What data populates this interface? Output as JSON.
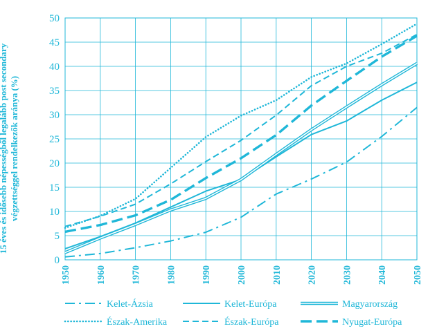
{
  "chart_data": {
    "type": "line",
    "ylabel": "15 éves és idősebb népességből legalább post secondary végzettséggel rendelkezők aránya (%)",
    "xlabel": "",
    "x": [
      1950,
      1960,
      1970,
      1980,
      1990,
      2000,
      2010,
      2020,
      2030,
      2040,
      2050
    ],
    "ylim": [
      0,
      50
    ],
    "yticks": [
      0,
      5,
      10,
      15,
      20,
      25,
      30,
      35,
      40,
      45,
      50
    ],
    "xtick_labels": [
      "1950",
      "1960",
      "1970",
      "1980",
      "1990",
      "2000",
      "2010",
      "2020",
      "2030",
      "2040",
      "2050"
    ],
    "ytick_labels": [
      "0",
      "5",
      "10",
      "15",
      "20",
      "25",
      "30",
      "35",
      "40",
      "45",
      "50"
    ],
    "grid": true,
    "legend_position": "bottom",
    "color": "#1fb7d8",
    "series": [
      {
        "name": "Kelet-Ázsia",
        "style": "dash-dot",
        "values": [
          0.6,
          1.3,
          2.5,
          3.9,
          5.7,
          8.8,
          13.6,
          16.7,
          20.2,
          25.5,
          31.5
        ]
      },
      {
        "name": "Kelet-Európa",
        "style": "solid",
        "values": [
          2.3,
          4.8,
          7.6,
          10.9,
          14.2,
          16.6,
          21.3,
          25.9,
          28.7,
          33.0,
          36.7
        ]
      },
      {
        "name": "Magyarország",
        "style": "double",
        "values": [
          1.5,
          4.5,
          7.3,
          10.3,
          12.7,
          16.6,
          21.8,
          26.9,
          31.6,
          36.2,
          40.6
        ]
      },
      {
        "name": "Észak-Amerika",
        "style": "dotted",
        "values": [
          6.6,
          9.1,
          12.6,
          19.0,
          25.4,
          29.8,
          33.0,
          37.8,
          40.6,
          44.6,
          48.8
        ]
      },
      {
        "name": "Észak-Európa",
        "style": "dashed",
        "values": [
          6.9,
          9.0,
          11.5,
          15.7,
          20.3,
          24.7,
          29.9,
          36.0,
          40.0,
          42.7,
          46.6
        ]
      },
      {
        "name": "Nyugat-Európa",
        "style": "long-dash",
        "values": [
          5.8,
          7.2,
          9.2,
          12.4,
          16.9,
          21.0,
          25.8,
          31.9,
          37.0,
          42.0,
          46.3
        ]
      }
    ]
  }
}
